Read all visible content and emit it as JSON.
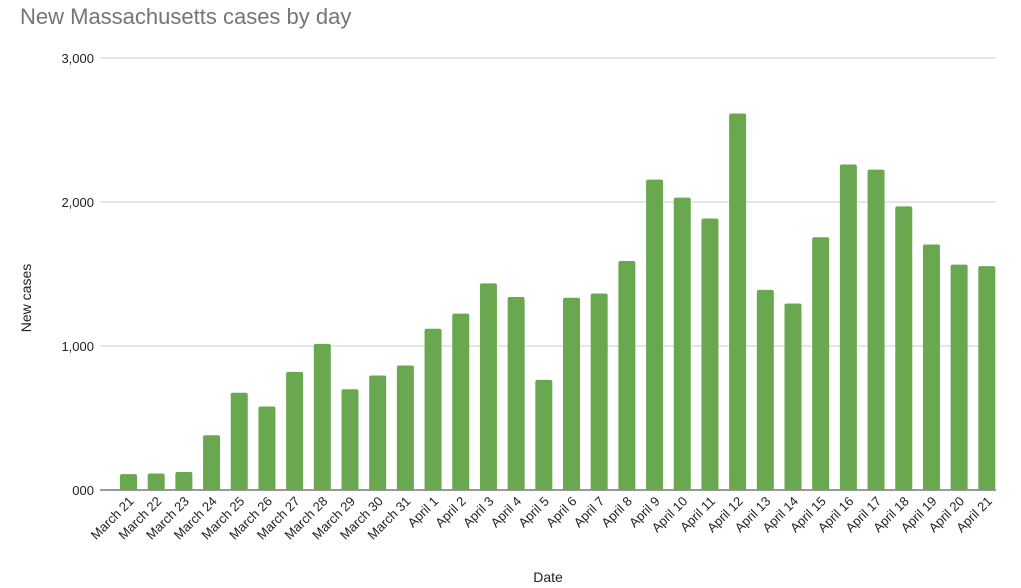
{
  "chart_data": {
    "type": "bar",
    "title": "New Massachusetts cases by day",
    "xlabel": "Date",
    "ylabel": "New cases",
    "ylim": [
      0,
      3000
    ],
    "yticks": [
      0,
      1000,
      2000,
      3000
    ],
    "ytick_labels": [
      "000",
      "1,000",
      "2,000",
      "3,000"
    ],
    "grid": true,
    "legend": "none",
    "bar_color": "#6aa84f",
    "categories": [
      "March 21",
      "March 22",
      "March 23",
      "March 24",
      "March 25",
      "March 26",
      "March 27",
      "March 28",
      "March 29",
      "March 30",
      "March 31",
      "April 1",
      "April 2",
      "April 3",
      "April 4",
      "April 5",
      "April 6",
      "April 7",
      "April 8",
      "April 9",
      "April 10",
      "April 11",
      "April 12",
      "April 13",
      "April 14",
      "April 15",
      "April 16",
      "April 17",
      "April 18",
      "April 19",
      "April 20",
      "April 21"
    ],
    "values": [
      110,
      115,
      125,
      380,
      675,
      580,
      820,
      1015,
      700,
      795,
      865,
      1120,
      1225,
      1435,
      1340,
      765,
      1335,
      1365,
      1590,
      2155,
      2030,
      1885,
      2615,
      1390,
      1295,
      1755,
      2260,
      2225,
      1970,
      1705,
      1565,
      1555
    ]
  }
}
